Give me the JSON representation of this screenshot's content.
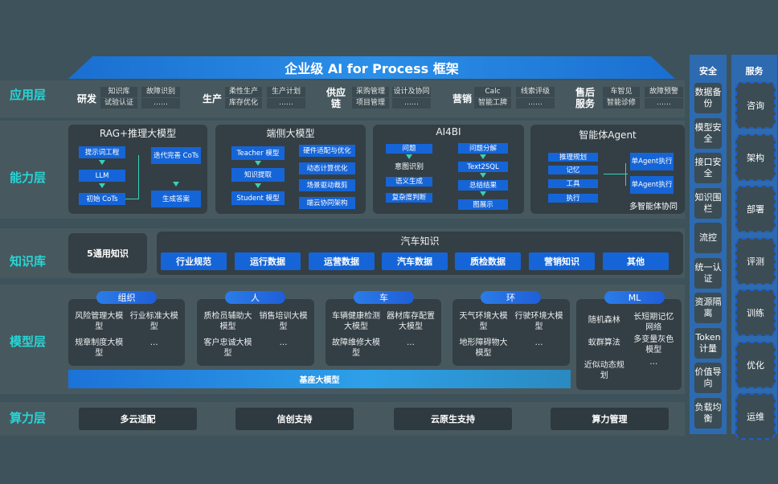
{
  "title": "企业级 AI for Process 框架",
  "layers": {
    "app": "应用层",
    "capability": "能力层",
    "knowledge": "知识库",
    "model": "模型层",
    "compute": "算力层"
  },
  "app_groups": [
    {
      "name": "研发",
      "items": [
        "知识库",
        "试验认证",
        "故障识别",
        "……"
      ]
    },
    {
      "name": "生产",
      "items": [
        "柔性生产",
        "库存优化",
        "生产计划",
        "……"
      ]
    },
    {
      "name": "供应链",
      "items": [
        "采购管理",
        "项目管理",
        "设计及协同",
        "……"
      ]
    },
    {
      "name": "营销",
      "items": [
        "Calc",
        "智能工牌",
        "线索评级",
        "……"
      ]
    },
    {
      "name": "售后服务",
      "items": [
        "车智见",
        "智能诊修",
        "故障预警",
        "……"
      ]
    }
  ],
  "capability": {
    "rag": {
      "title": "RAG+推理大模型",
      "left": [
        "提示词工程",
        "LLM",
        "初始 CoTs"
      ],
      "right": [
        "迭代完善 CoTs",
        "生成答案"
      ]
    },
    "edge": {
      "title": "端侧大模型",
      "left": [
        "Teacher 模型",
        "知识提取",
        "Student 模型"
      ],
      "right": [
        "硬件适配与优化",
        "动态计算优化",
        "场景驱动裁剪",
        "端云协同架构"
      ]
    },
    "ai4bi": {
      "title": "AI4BI",
      "left_top": "问题",
      "intent": "意图识别",
      "left": [
        "语义生成",
        "复杂度判断"
      ],
      "right": [
        "问题分解",
        "Text2SQL",
        "总结结果",
        "图展示"
      ]
    },
    "agent": {
      "title": "智能体Agent",
      "left": [
        "推理规划",
        "记忆",
        "工具",
        "执行"
      ],
      "right": [
        "单Agent执行",
        "单Agent执行"
      ],
      "caption": "多智能体协同"
    }
  },
  "knowledge": {
    "general": "5通用知识",
    "auto_title": "汽车知识",
    "chips": [
      "行业规范",
      "运行数据",
      "运营数据",
      "汽车数据",
      "质检数据",
      "营销知识",
      "其他"
    ]
  },
  "model": {
    "groups": [
      {
        "name": "组织",
        "items": [
          "风险管理大模型",
          "行业标准大模型",
          "规章制度大模型",
          "…"
        ]
      },
      {
        "name": "人",
        "items": [
          "质检员辅助大模型",
          "销售培训大模型",
          "客户忠诚大模型",
          "…"
        ]
      },
      {
        "name": "车",
        "items": [
          "车辆健康检测大模型",
          "器材库存配置大模型",
          "故障维修大模型",
          "…"
        ]
      },
      {
        "name": "环",
        "items": [
          "天气环境大模型",
          "行驶环境大模型",
          "地形障碍物大模型",
          "…"
        ]
      },
      {
        "name": "ML",
        "items": [
          "随机森林",
          "长短期记忆网络",
          "蚁群算法",
          "多变量灰色模型",
          "近似动态规划",
          "…"
        ]
      }
    ],
    "base": "基座大模型"
  },
  "compute": [
    "多云适配",
    "信创支持",
    "云原生支持",
    "算力管理"
  ],
  "security": {
    "title": "安全",
    "items": [
      "数据备份",
      "模型安全",
      "接口安全",
      "知识围栏",
      "流控",
      "统一认证",
      "资源隔离",
      "Token计量",
      "价值导向",
      "负载均衡"
    ]
  },
  "service": {
    "title": "服务",
    "items": [
      "咨询",
      "架构",
      "部署",
      "评测",
      "训练",
      "优化",
      "运维"
    ]
  }
}
